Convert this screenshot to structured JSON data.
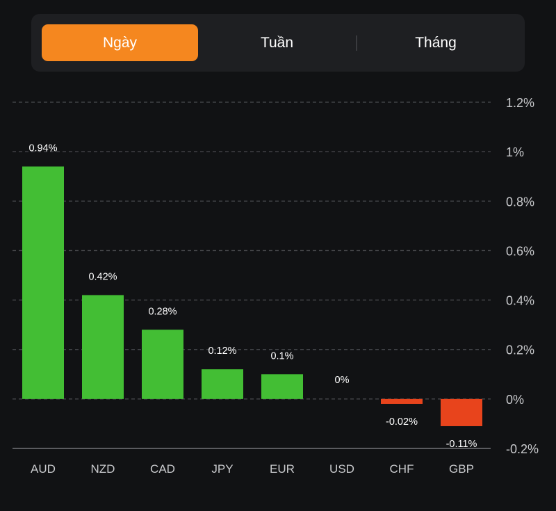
{
  "tabs": {
    "items": [
      {
        "label": "Ngày",
        "active": true
      },
      {
        "label": "Tuần",
        "active": false
      },
      {
        "label": "Tháng",
        "active": false
      }
    ],
    "active_color": "#f5871f"
  },
  "chart_data": {
    "type": "bar",
    "title": "",
    "xlabel": "",
    "ylabel": "",
    "categories": [
      "AUD",
      "NZD",
      "CAD",
      "JPY",
      "EUR",
      "USD",
      "CHF",
      "GBP"
    ],
    "values": [
      0.94,
      0.42,
      0.28,
      0.12,
      0.1,
      0,
      -0.02,
      -0.11
    ],
    "data_labels": [
      "0.94%",
      "0.42%",
      "0.28%",
      "0.12%",
      "0.1%",
      "0%",
      "-0.02%",
      "-0.11%"
    ],
    "ylim": [
      -0.2,
      1.2
    ],
    "yticks": [
      1.2,
      1,
      0.8,
      0.6,
      0.4,
      0.2,
      0,
      -0.2
    ],
    "ytick_labels": [
      "1.2%",
      "1%",
      "0.8%",
      "0.6%",
      "0.4%",
      "0.2%",
      "0%",
      "-0.2%"
    ],
    "y_axis_position": "right",
    "grid": true,
    "colors": {
      "positive": "#43be34",
      "negative": "#e8441c",
      "grid": "#4a4b4f",
      "baseline": "#5a5b5f"
    }
  }
}
